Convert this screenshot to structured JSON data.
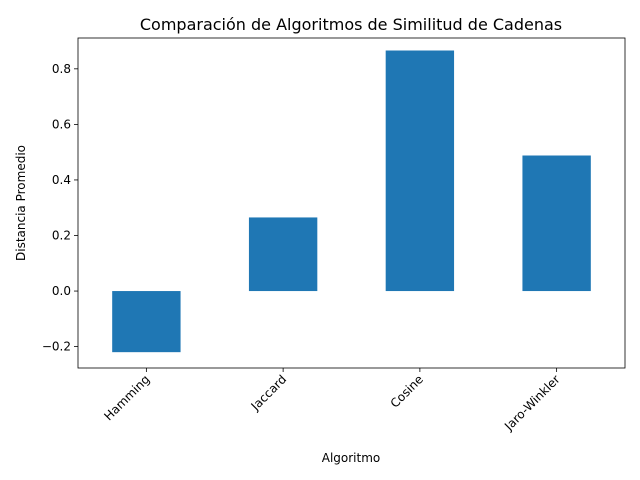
{
  "chart_data": {
    "type": "bar",
    "title": "Comparación de Algoritmos de Similitud de Cadenas",
    "xlabel": "Algoritmo",
    "ylabel": "Distancia Promedio",
    "categories": [
      "Hamming",
      "Jaccard",
      "Cosine",
      "Jaro-Winkler"
    ],
    "values": [
      -0.22,
      0.265,
      0.866,
      0.488
    ],
    "ylim": [
      -0.277,
      0.911
    ],
    "yticks": [
      -0.2,
      0.0,
      0.2,
      0.4,
      0.6,
      0.8
    ],
    "ytick_labels": [
      "−0.2",
      "0.0",
      "0.2",
      "0.4",
      "0.6",
      "0.8"
    ],
    "bar_color": "#1f77b4",
    "grid": false,
    "legend": "none"
  }
}
